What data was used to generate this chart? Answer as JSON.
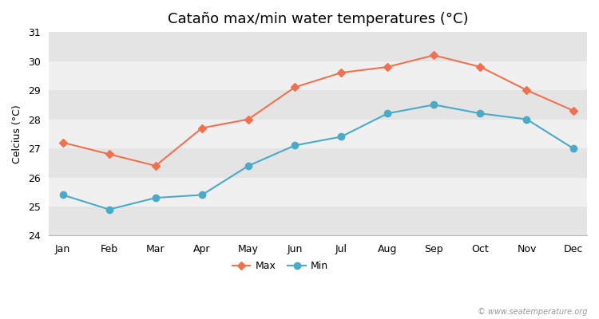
{
  "title": "Cataño max/min water temperatures (°C)",
  "ylabel": "Celcius (°C)",
  "months": [
    "Jan",
    "Feb",
    "Mar",
    "Apr",
    "May",
    "Jun",
    "Jul",
    "Aug",
    "Sep",
    "Oct",
    "Nov",
    "Dec"
  ],
  "max_values": [
    27.2,
    26.8,
    26.4,
    27.7,
    28.0,
    29.1,
    29.6,
    29.8,
    30.2,
    29.8,
    29.0,
    28.3
  ],
  "min_values": [
    25.4,
    24.9,
    25.3,
    25.4,
    26.4,
    27.1,
    27.4,
    28.2,
    28.5,
    28.2,
    28.0,
    27.0
  ],
  "max_color": "#f0714f",
  "min_color": "#4aaac8",
  "bg_color": "#ffffff",
  "plot_bg_light": "#f0f0f0",
  "plot_bg_dark": "#e4e4e4",
  "ylim": [
    24,
    31
  ],
  "yticks": [
    24,
    25,
    26,
    27,
    28,
    29,
    30,
    31
  ],
  "legend_label_max": "Max",
  "legend_label_min": "Min",
  "watermark": "© www.seatemperature.org",
  "title_fontsize": 13,
  "axis_label_fontsize": 9,
  "tick_fontsize": 9
}
